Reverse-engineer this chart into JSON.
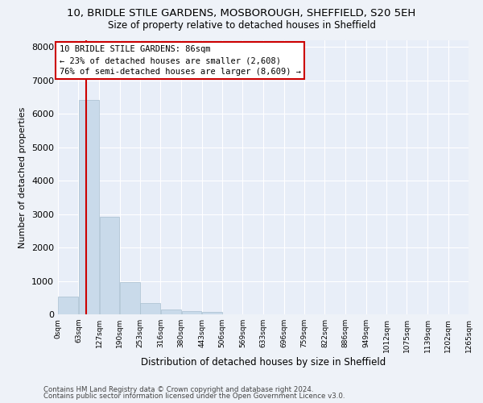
{
  "title_line1": "10, BRIDLE STILE GARDENS, MOSBOROUGH, SHEFFIELD, S20 5EH",
  "title_line2": "Size of property relative to detached houses in Sheffield",
  "xlabel": "Distribution of detached houses by size in Sheffield",
  "ylabel": "Number of detached properties",
  "bar_color": "#c9daea",
  "bar_edge_color": "#a8bfcf",
  "bg_color": "#e8eef8",
  "fig_bg_color": "#eef2f8",
  "grid_color": "#ffffff",
  "marker_line_color": "#cc0000",
  "marker_value": 86,
  "annotation_line1": "10 BRIDLE STILE GARDENS: 86sqm",
  "annotation_line2": "← 23% of detached houses are smaller (2,608)",
  "annotation_line3": "76% of semi-detached houses are larger (8,609) →",
  "footer_line1": "Contains HM Land Registry data © Crown copyright and database right 2024.",
  "footer_line2": "Contains public sector information licensed under the Open Government Licence v3.0.",
  "bin_edges": [
    0,
    63,
    127,
    190,
    253,
    316,
    380,
    443,
    506,
    569,
    633,
    696,
    759,
    822,
    886,
    949,
    1012,
    1075,
    1139,
    1202,
    1265
  ],
  "bar_heights": [
    530,
    6420,
    2920,
    960,
    330,
    155,
    100,
    70,
    0,
    0,
    0,
    0,
    0,
    0,
    0,
    0,
    0,
    0,
    0,
    0
  ],
  "xlim": [
    0,
    1265
  ],
  "ylim": [
    0,
    8200
  ],
  "yticks": [
    0,
    1000,
    2000,
    3000,
    4000,
    5000,
    6000,
    7000,
    8000
  ],
  "xtick_labels": [
    "0sqm",
    "63sqm",
    "127sqm",
    "190sqm",
    "253sqm",
    "316sqm",
    "380sqm",
    "443sqm",
    "506sqm",
    "569sqm",
    "633sqm",
    "696sqm",
    "759sqm",
    "822sqm",
    "886sqm",
    "949sqm",
    "1012sqm",
    "1075sqm",
    "1139sqm",
    "1202sqm",
    "1265sqm"
  ],
  "title1_fontsize": 9.5,
  "title2_fontsize": 8.5,
  "ylabel_fontsize": 8,
  "xlabel_fontsize": 8.5,
  "ytick_fontsize": 8,
  "xtick_fontsize": 6.5,
  "footer_fontsize": 6.2
}
